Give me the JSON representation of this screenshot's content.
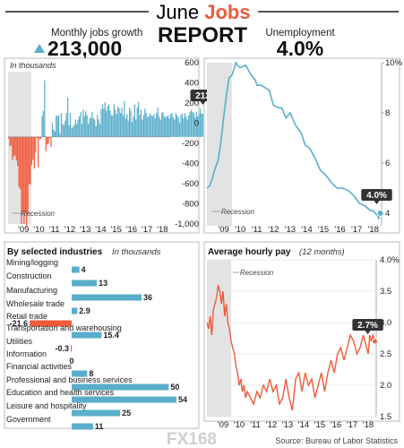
{
  "header": {
    "title_prefix": "June ",
    "title_accent": "Jobs",
    "title_second_line": "REPORT",
    "left_label": "Monthly jobs growth",
    "left_value": "213,000",
    "right_label": "Unemployment",
    "right_value": "4.0%"
  },
  "colors": {
    "blue": "#5aaecb",
    "red": "#f05a3a",
    "recession": "#e3e3e3",
    "title_orange": "#f05a3a",
    "callout": "#333333"
  },
  "icons": {
    "up_arrow": "up-triangle-icon"
  },
  "chart_data": [
    {
      "id": "jobs",
      "type": "bar",
      "subtitle": "In thousands",
      "x_tick_labels": [
        "'09",
        "'10",
        "'11",
        "'12",
        "'13",
        "'14",
        "'15",
        "'16",
        "'17",
        "'18"
      ],
      "x_range": [
        2008.0,
        2018.5
      ],
      "ylim": [
        -800,
        600
      ],
      "zero_line": 0,
      "recession": {
        "label": "Recession",
        "start": 2008.0,
        "end": 2009.5
      },
      "callout": "213",
      "series": [
        {
          "start": 2008.0,
          "step": 0.0833,
          "values": [
            -15,
            -85,
            -80,
            -215,
            -180,
            -170,
            -215,
            -265,
            -460,
            -480,
            -800,
            -690,
            -800,
            -690,
            -830,
            -700,
            -430,
            -440,
            -260,
            -210,
            -290,
            -140,
            -10,
            -280,
            -20,
            -20,
            190,
            240,
            520,
            -130,
            -70,
            -60,
            -10,
            -90,
            130,
            70,
            50,
            200,
            190,
            200,
            30,
            220,
            120,
            110,
            150,
            220,
            360,
            110,
            220,
            80,
            90,
            110,
            160,
            120,
            160,
            190,
            230,
            120,
            250,
            190,
            240,
            200,
            120,
            170,
            180,
            230,
            170,
            160,
            100,
            200,
            160,
            120,
            250,
            300,
            260,
            320,
            240,
            280,
            300,
            240,
            200,
            200,
            300,
            250,
            210,
            280,
            260,
            220,
            270,
            200,
            330,
            170,
            210,
            150,
            270,
            240,
            140,
            190,
            300,
            160,
            270,
            320,
            200,
            250,
            160,
            200,
            260,
            220,
            180,
            190,
            220,
            200,
            190,
            210,
            170,
            220,
            270,
            190,
            160,
            220,
            230,
            190,
            180,
            190,
            200,
            170,
            210,
            220,
            180,
            160,
            220,
            200,
            180,
            130,
            200,
            215,
            170,
            220,
            190,
            160,
            200,
            230,
            250,
            230,
            220,
            180,
            230,
            190,
            210,
            260,
            215,
            213
          ]
        }
      ]
    },
    {
      "id": "unemployment",
      "type": "line",
      "x_tick_labels": [
        "'09",
        "'10",
        "'11",
        "'12",
        "'13",
        "'14",
        "'15",
        "'16",
        "'17",
        "'18"
      ],
      "x_range": [
        2008.0,
        2018.5
      ],
      "y_tick_labels": [
        "10%",
        "8",
        "6",
        "4"
      ],
      "ylim": [
        3.5,
        10.0
      ],
      "recession": {
        "label": "Recession",
        "start": 2008.0,
        "end": 2009.5
      },
      "callout": "4.0%",
      "points": [
        [
          2008.0,
          5.0
        ],
        [
          2008.17,
          5.1
        ],
        [
          2008.33,
          5.4
        ],
        [
          2008.5,
          5.8
        ],
        [
          2008.67,
          6.1
        ],
        [
          2008.83,
          6.8
        ],
        [
          2009.0,
          7.8
        ],
        [
          2009.17,
          8.7
        ],
        [
          2009.33,
          9.4
        ],
        [
          2009.5,
          9.5
        ],
        [
          2009.75,
          10.0
        ],
        [
          2009.83,
          9.9
        ],
        [
          2010.0,
          9.8
        ],
        [
          2010.33,
          9.9
        ],
        [
          2010.67,
          9.5
        ],
        [
          2010.92,
          9.3
        ],
        [
          2011.0,
          9.1
        ],
        [
          2011.25,
          9.1
        ],
        [
          2011.5,
          9.0
        ],
        [
          2011.75,
          8.9
        ],
        [
          2012.0,
          8.3
        ],
        [
          2012.33,
          8.2
        ],
        [
          2012.5,
          8.2
        ],
        [
          2012.75,
          7.8
        ],
        [
          2013.0,
          8.0
        ],
        [
          2013.33,
          7.5
        ],
        [
          2013.67,
          7.2
        ],
        [
          2013.92,
          6.7
        ],
        [
          2014.17,
          6.6
        ],
        [
          2014.5,
          6.2
        ],
        [
          2014.83,
          5.7
        ],
        [
          2015.17,
          5.5
        ],
        [
          2015.5,
          5.2
        ],
        [
          2015.83,
          5.0
        ],
        [
          2016.17,
          5.0
        ],
        [
          2016.5,
          4.9
        ],
        [
          2016.83,
          4.7
        ],
        [
          2017.17,
          4.4
        ],
        [
          2017.5,
          4.3
        ],
        [
          2017.83,
          4.1
        ],
        [
          2018.0,
          4.1
        ],
        [
          2018.25,
          3.9
        ],
        [
          2018.33,
          3.8
        ],
        [
          2018.42,
          4.0
        ]
      ]
    },
    {
      "id": "industries",
      "type": "bar",
      "title": "By selected industries",
      "subtitle": "In thousands",
      "categories": [
        "Mining/logging",
        "Construction",
        "Manufacturing",
        "Wholesale trade",
        "Retail trade",
        "Transportation and warehousing",
        "Utilities",
        "Information",
        "Financial activities",
        "Professional and business services",
        "Education and health services",
        "Leisure and hospitality",
        "Government"
      ],
      "values": [
        4,
        13,
        36,
        2.9,
        -21.6,
        15.4,
        -0.3,
        0,
        8,
        50,
        54,
        25,
        11
      ],
      "value_labels": [
        "4",
        "13",
        "36",
        "2.9",
        "-21.6",
        "15.4",
        "-0.3",
        "0",
        "8",
        "50",
        "54",
        "25",
        "11"
      ],
      "xlim": [
        -21.6,
        54
      ]
    },
    {
      "id": "hourly_pay",
      "type": "line",
      "title": "Average hourly pay",
      "subtitle": "(12 months)",
      "x_tick_labels": [
        "'09",
        "'10",
        "'11",
        "'12",
        "'13",
        "'14",
        "'15",
        "'16",
        "'17",
        "'18"
      ],
      "x_range": [
        2008.0,
        2018.5
      ],
      "y_tick_labels": [
        "4.0%",
        "3.5",
        "3.0",
        "2.5",
        "2.0",
        "1.5"
      ],
      "ylim": [
        1.5,
        4.0
      ],
      "recession": {
        "label": "Recession",
        "start": 2008.0,
        "end": 2009.5
      },
      "callout": "2.7%",
      "points": [
        [
          2008.0,
          3.0
        ],
        [
          2008.1,
          2.9
        ],
        [
          2008.2,
          3.1
        ],
        [
          2008.3,
          2.8
        ],
        [
          2008.4,
          3.2
        ],
        [
          2008.5,
          3.3
        ],
        [
          2008.6,
          3.4
        ],
        [
          2008.7,
          3.6
        ],
        [
          2008.8,
          3.5
        ],
        [
          2008.9,
          3.3
        ],
        [
          2009.0,
          3.5
        ],
        [
          2009.1,
          3.1
        ],
        [
          2009.2,
          3.3
        ],
        [
          2009.3,
          3.0
        ],
        [
          2009.4,
          2.9
        ],
        [
          2009.5,
          2.7
        ],
        [
          2009.6,
          2.6
        ],
        [
          2009.7,
          2.5
        ],
        [
          2009.8,
          2.3
        ],
        [
          2009.9,
          2.2
        ],
        [
          2010.0,
          2.0
        ],
        [
          2010.1,
          2.1
        ],
        [
          2010.2,
          1.9
        ],
        [
          2010.3,
          2.0
        ],
        [
          2010.4,
          1.8
        ],
        [
          2010.5,
          1.9
        ],
        [
          2010.7,
          1.8
        ],
        [
          2010.9,
          1.7
        ],
        [
          2011.1,
          1.9
        ],
        [
          2011.3,
          1.8
        ],
        [
          2011.5,
          2.0
        ],
        [
          2011.7,
          1.9
        ],
        [
          2011.9,
          2.1
        ],
        [
          2012.1,
          1.9
        ],
        [
          2012.3,
          2.0
        ],
        [
          2012.5,
          1.7
        ],
        [
          2012.7,
          1.8
        ],
        [
          2012.9,
          2.1
        ],
        [
          2013.1,
          1.8
        ],
        [
          2013.3,
          1.6
        ],
        [
          2013.5,
          2.1
        ],
        [
          2013.7,
          2.2
        ],
        [
          2013.9,
          1.9
        ],
        [
          2014.1,
          2.2
        ],
        [
          2014.3,
          2.0
        ],
        [
          2014.5,
          2.1
        ],
        [
          2014.7,
          1.8
        ],
        [
          2014.9,
          2.0
        ],
        [
          2015.1,
          2.2
        ],
        [
          2015.3,
          1.9
        ],
        [
          2015.5,
          2.2
        ],
        [
          2015.7,
          2.4
        ],
        [
          2015.9,
          2.2
        ],
        [
          2016.1,
          2.5
        ],
        [
          2016.3,
          2.6
        ],
        [
          2016.5,
          2.4
        ],
        [
          2016.7,
          2.6
        ],
        [
          2016.9,
          2.8
        ],
        [
          2017.1,
          2.7
        ],
        [
          2017.3,
          2.5
        ],
        [
          2017.5,
          2.6
        ],
        [
          2017.7,
          2.8
        ],
        [
          2017.9,
          2.6
        ],
        [
          2018.0,
          2.5
        ],
        [
          2018.1,
          2.8
        ],
        [
          2018.2,
          2.7
        ],
        [
          2018.3,
          2.8
        ],
        [
          2018.42,
          2.7
        ]
      ]
    }
  ],
  "footer": {
    "logo": "FX168",
    "source": "Source: Bureau of Labor Statistics"
  }
}
